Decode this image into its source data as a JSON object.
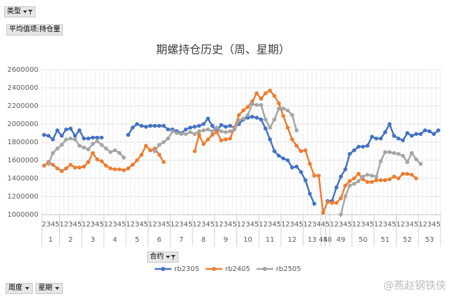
{
  "filter_button": "类型",
  "value_field": "平均值项:持仓量",
  "legend_button": "合约",
  "axis_buttons": [
    "周度",
    "星期"
  ],
  "watermark": "@燕赵钢铁侠",
  "chart_data": {
    "type": "line",
    "title": "期螺持仓历史（周、星期）",
    "ylim": [
      1000000,
      2600000
    ],
    "yticks": [
      1000000,
      1200000,
      1400000,
      1600000,
      1800000,
      2000000,
      2200000,
      2400000,
      2600000
    ],
    "grid": true,
    "legend": "bottom",
    "categories": [
      {
        "week": "1",
        "day": "2"
      },
      {
        "week": "1",
        "day": "3"
      },
      {
        "week": "1",
        "day": "4"
      },
      {
        "week": "1",
        "day": "5"
      },
      {
        "week": "2",
        "day": "1"
      },
      {
        "week": "2",
        "day": "2"
      },
      {
        "week": "2",
        "day": "3"
      },
      {
        "week": "2",
        "day": "4"
      },
      {
        "week": "2",
        "day": "5"
      },
      {
        "week": "3",
        "day": "1"
      },
      {
        "week": "3",
        "day": "2"
      },
      {
        "week": "3",
        "day": "3"
      },
      {
        "week": "3",
        "day": "4"
      },
      {
        "week": "3",
        "day": "5"
      },
      {
        "week": "4",
        "day": "1"
      },
      {
        "week": "4",
        "day": "2"
      },
      {
        "week": "4",
        "day": "3"
      },
      {
        "week": "4",
        "day": "4"
      },
      {
        "week": "4",
        "day": "5"
      },
      {
        "week": "5",
        "day": "1"
      },
      {
        "week": "5",
        "day": "2"
      },
      {
        "week": "5",
        "day": "3"
      },
      {
        "week": "5",
        "day": "4"
      },
      {
        "week": "5",
        "day": "5"
      },
      {
        "week": "6",
        "day": "1"
      },
      {
        "week": "6",
        "day": "2"
      },
      {
        "week": "6",
        "day": "3"
      },
      {
        "week": "6",
        "day": "4"
      },
      {
        "week": "6",
        "day": "5"
      },
      {
        "week": "7",
        "day": "1"
      },
      {
        "week": "7",
        "day": "2"
      },
      {
        "week": "7",
        "day": "3"
      },
      {
        "week": "7",
        "day": "4"
      },
      {
        "week": "7",
        "day": "5"
      },
      {
        "week": "8",
        "day": "1"
      },
      {
        "week": "8",
        "day": "2"
      },
      {
        "week": "8",
        "day": "3"
      },
      {
        "week": "8",
        "day": "4"
      },
      {
        "week": "8",
        "day": "5"
      },
      {
        "week": "9",
        "day": "1"
      },
      {
        "week": "9",
        "day": "2"
      },
      {
        "week": "9",
        "day": "3"
      },
      {
        "week": "9",
        "day": "4"
      },
      {
        "week": "9",
        "day": "5"
      },
      {
        "week": "10",
        "day": "1"
      },
      {
        "week": "10",
        "day": "2"
      },
      {
        "week": "10",
        "day": "3"
      },
      {
        "week": "10",
        "day": "4"
      },
      {
        "week": "10",
        "day": "5"
      },
      {
        "week": "11",
        "day": "1"
      },
      {
        "week": "11",
        "day": "2"
      },
      {
        "week": "11",
        "day": "3"
      },
      {
        "week": "11",
        "day": "4"
      },
      {
        "week": "11",
        "day": "5"
      },
      {
        "week": "12",
        "day": "1"
      },
      {
        "week": "12",
        "day": "2"
      },
      {
        "week": "12",
        "day": "3"
      },
      {
        "week": "12",
        "day": "4"
      },
      {
        "week": "12",
        "day": "5"
      },
      {
        "week": "13",
        "day": "1"
      },
      {
        "week": "13",
        "day": "2"
      },
      {
        "week": "13",
        "day": "3"
      },
      {
        "week": "13",
        "day": "4"
      },
      {
        "week": "45",
        "day": "4"
      },
      {
        "week": "48",
        "day": "5"
      },
      {
        "week": "49",
        "day": "1"
      },
      {
        "week": "49",
        "day": "2"
      },
      {
        "week": "49",
        "day": "3"
      },
      {
        "week": "49",
        "day": "4"
      },
      {
        "week": "49",
        "day": "5"
      },
      {
        "week": "50",
        "day": "1"
      },
      {
        "week": "50",
        "day": "2"
      },
      {
        "week": "50",
        "day": "3"
      },
      {
        "week": "50",
        "day": "4"
      },
      {
        "week": "50",
        "day": "5"
      },
      {
        "week": "51",
        "day": "1"
      },
      {
        "week": "51",
        "day": "2"
      },
      {
        "week": "51",
        "day": "3"
      },
      {
        "week": "51",
        "day": "4"
      },
      {
        "week": "51",
        "day": "5"
      },
      {
        "week": "52",
        "day": "1"
      },
      {
        "week": "52",
        "day": "2"
      },
      {
        "week": "52",
        "day": "3"
      },
      {
        "week": "52",
        "day": "4"
      },
      {
        "week": "52",
        "day": "5"
      },
      {
        "week": "53",
        "day": "1"
      },
      {
        "week": "53",
        "day": "2"
      },
      {
        "week": "53",
        "day": "3"
      },
      {
        "week": "53",
        "day": "4"
      },
      {
        "week": "53",
        "day": "5"
      }
    ],
    "series": [
      {
        "name": "rb2305",
        "color": "#4472c4",
        "values": [
          1880000,
          1870000,
          1830000,
          1930000,
          1870000,
          1940000,
          1950000,
          1870000,
          1930000,
          1840000,
          1840000,
          1850000,
          1850000,
          1850000,
          null,
          null,
          null,
          null,
          null,
          1880000,
          1960000,
          2000000,
          1980000,
          1970000,
          1980000,
          1980000,
          1980000,
          1980000,
          1940000,
          1940000,
          1920000,
          1900000,
          1940000,
          1960000,
          1970000,
          1980000,
          2000000,
          2060000,
          1980000,
          1920000,
          1990000,
          1970000,
          1980000,
          1960000,
          2000000,
          2050000,
          2070000,
          2080000,
          2070000,
          2050000,
          1950000,
          1830000,
          1700000,
          1650000,
          1620000,
          1600000,
          1520000,
          1530000,
          1470000,
          1380000,
          1230000,
          1120000,
          null,
          null,
          1150000,
          1150000,
          1300000,
          1420000,
          1500000,
          1670000,
          1710000,
          1750000,
          1750000,
          1760000,
          1860000,
          1840000,
          1840000,
          1910000,
          2000000,
          1870000,
          1840000,
          1820000,
          1900000,
          1870000,
          1890000,
          1890000,
          1930000,
          1920000,
          1890000,
          1930000
        ]
      },
      {
        "name": "rb2405",
        "color": "#ed7d31",
        "values": [
          1540000,
          1580000,
          1550000,
          1510000,
          1480000,
          1510000,
          1550000,
          1520000,
          1520000,
          1530000,
          1580000,
          1680000,
          1610000,
          1590000,
          1540000,
          1510000,
          1500000,
          1500000,
          1490000,
          1510000,
          1550000,
          1600000,
          1660000,
          1760000,
          1710000,
          1730000,
          1660000,
          1580000,
          null,
          null,
          null,
          null,
          null,
          null,
          1700000,
          1880000,
          1780000,
          1830000,
          1880000,
          1910000,
          1820000,
          1830000,
          1840000,
          1960000,
          2100000,
          2150000,
          2190000,
          2250000,
          2340000,
          2280000,
          2340000,
          2370000,
          2310000,
          2230000,
          2090000,
          1960000,
          1830000,
          1760000,
          1700000,
          1710000,
          1560000,
          1430000,
          1430000,
          1020000,
          1140000,
          1130000,
          1130000,
          1180000,
          1320000,
          1370000,
          1400000,
          1450000,
          1390000,
          1360000,
          1360000,
          1380000,
          1380000,
          1380000,
          1390000,
          1420000,
          1400000,
          1450000,
          1450000,
          1440000,
          1400000,
          null,
          null,
          null,
          null,
          null
        ]
      },
      {
        "name": "rb2505",
        "color": "#a5a5a5",
        "values": [
          null,
          1560000,
          1680000,
          1730000,
          1770000,
          1830000,
          1840000,
          1830000,
          1760000,
          1740000,
          1720000,
          1780000,
          1810000,
          1770000,
          1730000,
          1690000,
          1710000,
          1680000,
          1630000,
          null,
          null,
          null,
          null,
          null,
          null,
          1700000,
          1770000,
          1800000,
          1840000,
          1920000,
          1900000,
          1890000,
          1890000,
          1910000,
          1890000,
          1920000,
          1930000,
          1940000,
          1920000,
          1960000,
          1920000,
          1910000,
          1920000,
          1940000,
          2040000,
          2060000,
          2100000,
          2220000,
          2210000,
          2210000,
          2050000,
          1960000,
          2050000,
          2170000,
          2170000,
          2150000,
          2100000,
          1930000,
          null,
          null,
          null,
          null,
          null,
          null,
          null,
          null,
          null,
          1000000,
          1200000,
          1320000,
          1340000,
          1370000,
          1420000,
          1440000,
          1430000,
          1420000,
          1590000,
          1690000,
          1690000,
          1680000,
          1670000,
          1650000,
          1580000,
          1680000,
          1610000,
          1560000,
          null,
          null,
          null,
          null
        ]
      }
    ]
  }
}
